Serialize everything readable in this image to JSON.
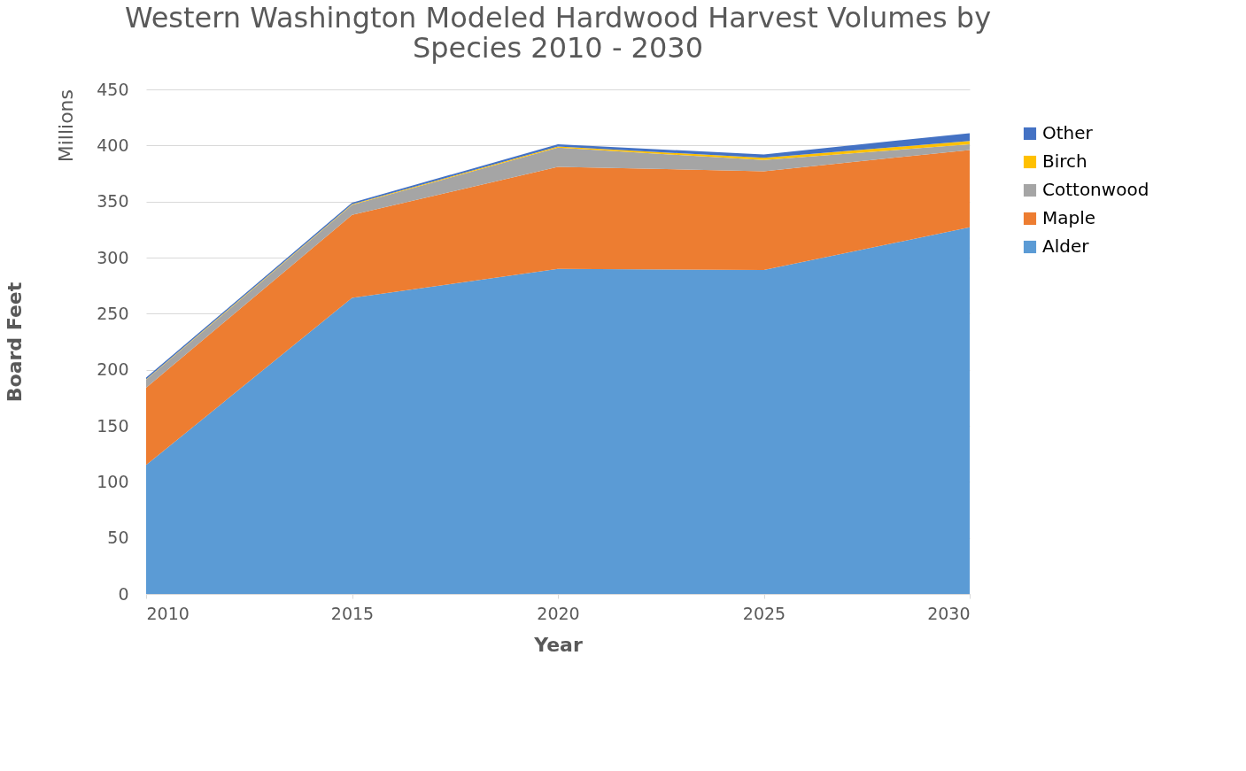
{
  "chart_data": {
    "type": "area",
    "title": [
      "Western Washington Modeled Hardwood Harvest Volumes by",
      "Species 2010 - 2030"
    ],
    "xlabel": "Year",
    "ylabel": "Board Feet",
    "annotations": [
      "Millions"
    ],
    "x": [
      2010,
      2015,
      2020,
      2025,
      2030
    ],
    "stacked": true,
    "series": [
      {
        "name": "Alder",
        "color": "#5b9bd5",
        "values": [
          115,
          264,
          290,
          289,
          327
        ]
      },
      {
        "name": "Maple",
        "color": "#ed7d31",
        "values": [
          69,
          74,
          91,
          88,
          69
        ]
      },
      {
        "name": "Cottonwood",
        "color": "#a5a5a5",
        "values": [
          7,
          9,
          17,
          10,
          5
        ]
      },
      {
        "name": "Birch",
        "color": "#ffc000",
        "values": [
          0.5,
          0.5,
          1,
          2,
          3
        ]
      },
      {
        "name": "Other",
        "color": "#4472c4",
        "values": [
          1.5,
          1.5,
          2,
          3,
          7
        ]
      }
    ],
    "xlim": [
      2010,
      2030
    ],
    "xticks": [
      2010,
      2015,
      2020,
      2025,
      2030
    ],
    "ylim": [
      0,
      450
    ],
    "yticks": [
      0,
      50,
      100,
      150,
      200,
      250,
      300,
      350,
      400,
      450
    ],
    "grid": "y",
    "legend": "right"
  }
}
